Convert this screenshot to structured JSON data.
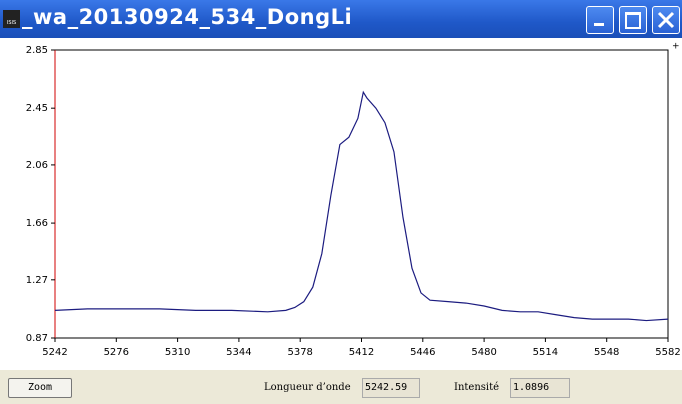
{
  "window": {
    "title": "_wa_20130924_534_DongLi",
    "icon": "ISIS"
  },
  "chart_data": {
    "type": "line",
    "color": "#1c1c80",
    "x": [
      5242,
      5260,
      5280,
      5300,
      5320,
      5340,
      5360,
      5370,
      5375,
      5380,
      5385,
      5390,
      5395,
      5400,
      5405,
      5410,
      5413,
      5415,
      5420,
      5425,
      5430,
      5435,
      5440,
      5445,
      5450,
      5460,
      5470,
      5480,
      5490,
      5500,
      5510,
      5520,
      5530,
      5540,
      5550,
      5560,
      5570,
      5582
    ],
    "values": [
      1.06,
      1.07,
      1.07,
      1.07,
      1.06,
      1.06,
      1.05,
      1.06,
      1.08,
      1.12,
      1.22,
      1.45,
      1.85,
      2.2,
      2.25,
      2.38,
      2.56,
      2.52,
      2.45,
      2.35,
      2.15,
      1.7,
      1.35,
      1.18,
      1.13,
      1.12,
      1.11,
      1.09,
      1.06,
      1.05,
      1.05,
      1.03,
      1.01,
      1.0,
      1.0,
      1.0,
      0.99,
      1.0
    ],
    "xlim": [
      5242,
      5582
    ],
    "ylim": [
      0.87,
      2.85
    ],
    "xticks": [
      5242,
      5276,
      5310,
      5344,
      5378,
      5412,
      5446,
      5480,
      5514,
      5548,
      5582
    ],
    "yticks": [
      0.87,
      1.27,
      1.66,
      2.06,
      2.45,
      2.85
    ]
  },
  "controls": {
    "zoom": "Zoom",
    "wavelength_label": "Longueur d’onde",
    "wavelength_value": "5242.59",
    "intensity_label": "Intensité",
    "intensity_value": "1.0896"
  }
}
